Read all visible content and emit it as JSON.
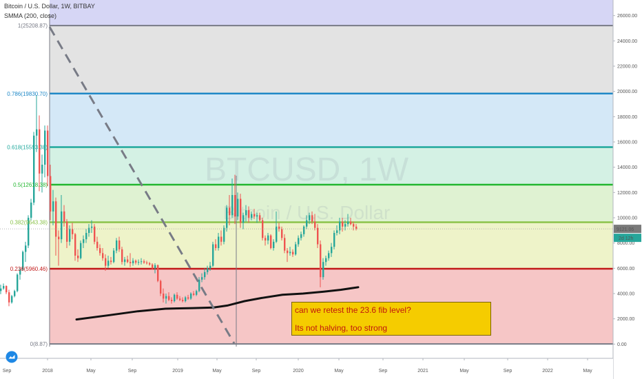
{
  "header": {
    "title_line": "Bitcoin / U.S. Dollar, 1W, BITBAY",
    "indicator_line": "SMMA (200, close)"
  },
  "watermark": {
    "symbol": "BTCUSD, 1W",
    "name": "Bitcoin / U.S. Dollar"
  },
  "chart_data": {
    "type": "candlestick",
    "y_axis": {
      "ticks": [
        "0.00",
        "2000.00",
        "4000.00",
        "6000.00",
        "8000.00",
        "10000.00",
        "12000.00",
        "14000.00",
        "16000.00",
        "18000.00",
        "20000.00",
        "22000.00",
        "24000.00",
        "26000.00"
      ],
      "ylim": [
        -200,
        26800
      ]
    },
    "x_axis": {
      "ticks": [
        "Sep",
        "2018",
        "May",
        "Sep",
        "2019",
        "May",
        "Sep",
        "2020",
        "May",
        "Sep",
        "2021",
        "May",
        "Sep",
        "2022",
        "May"
      ]
    },
    "fib_levels": [
      {
        "label": "0(8.87)",
        "value": 8.87,
        "line": "#787b86",
        "fill": "#f6c6c6"
      },
      {
        "label": "0.236(5960.46)",
        "value": 5960.46,
        "line": "#c21a1a",
        "fill": "#eef3c9"
      },
      {
        "label": "0.382(9643.38)",
        "value": 9643.38,
        "line": "#8bc34a",
        "fill": "#dff2d2"
      },
      {
        "label": "0.5(12618.38)",
        "value": 12618.38,
        "line": "#22b62f",
        "fill": "#d4f1e4"
      },
      {
        "label": "0.618(15593.38)",
        "value": 15593.38,
        "line": "#1fa89c",
        "fill": "#d4e8f7"
      },
      {
        "label": "0.786(19830.70)",
        "value": 19830.7,
        "line": "#1e88c7",
        "fill": "#e3e3e3"
      },
      {
        "label": "1(25208.87)",
        "value": 25208.87,
        "line": "#787b86",
        "fill": "#d6d6f5"
      }
    ],
    "last_price": "9121.06",
    "countdown": "2d 12h",
    "candles": [
      [
        0,
        4200,
        4700,
        3950,
        4400
      ],
      [
        4,
        4400,
        4800,
        4300,
        4600
      ],
      [
        8,
        4600,
        4650,
        3950,
        4100
      ],
      [
        12,
        4100,
        4300,
        3000,
        3300
      ],
      [
        16,
        3300,
        3900,
        3200,
        3800
      ],
      [
        20,
        3800,
        4300,
        3700,
        4200
      ],
      [
        24,
        4200,
        5600,
        4100,
        5500
      ],
      [
        28,
        5500,
        6100,
        5100,
        5900
      ],
      [
        32,
        5900,
        7400,
        5800,
        7300
      ],
      [
        36,
        7300,
        8100,
        6500,
        7800
      ],
      [
        40,
        7800,
        10200,
        7600,
        10000
      ],
      [
        44,
        10000,
        11500,
        9800,
        11200
      ],
      [
        48,
        11200,
        16800,
        11000,
        16500
      ],
      [
        52,
        16500,
        19700,
        15200,
        17000
      ],
      [
        56,
        17000,
        18100,
        12100,
        13500
      ],
      [
        60,
        13500,
        15000,
        12000,
        14200
      ],
      [
        64,
        14200,
        17300,
        13200,
        16900
      ],
      [
        68,
        16900,
        17300,
        12500,
        13300
      ],
      [
        72,
        13300,
        14200,
        9800,
        10500
      ],
      [
        76,
        10500,
        12200,
        9400,
        11300
      ],
      [
        80,
        11300,
        11600,
        7000,
        8500
      ],
      [
        84,
        8500,
        9000,
        6200,
        8300
      ],
      [
        88,
        8300,
        11800,
        8000,
        10500
      ],
      [
        92,
        10500,
        11000,
        9300,
        9700
      ],
      [
        96,
        9700,
        9900,
        7600,
        8100
      ],
      [
        100,
        8100,
        9400,
        7800,
        9100
      ],
      [
        104,
        9100,
        9600,
        8300,
        8700
      ],
      [
        108,
        8700,
        8800,
        6600,
        7000
      ],
      [
        112,
        7000,
        7500,
        6500,
        6800
      ],
      [
        116,
        6800,
        8200,
        6700,
        8000
      ],
      [
        120,
        8000,
        8600,
        7600,
        8300
      ],
      [
        124,
        8300,
        9100,
        8000,
        8800
      ],
      [
        128,
        8800,
        9500,
        8500,
        9200
      ],
      [
        132,
        9200,
        9800,
        8800,
        9300
      ],
      [
        136,
        9300,
        9500,
        7900,
        8100
      ],
      [
        140,
        8100,
        8500,
        7400,
        7600
      ],
      [
        144,
        7600,
        7900,
        7000,
        7200
      ],
      [
        148,
        7200,
        7600,
        6600,
        6800
      ],
      [
        152,
        6800,
        7100,
        5800,
        6200
      ],
      [
        156,
        6200,
        7000,
        6000,
        6600
      ],
      [
        160,
        6600,
        6900,
        6300,
        6500
      ],
      [
        164,
        6500,
        7600,
        6400,
        7400
      ],
      [
        168,
        7400,
        8400,
        7200,
        8200
      ],
      [
        172,
        8200,
        8500,
        7300,
        7500
      ],
      [
        176,
        7500,
        7700,
        6300,
        6500
      ],
      [
        180,
        6500,
        6900,
        6200,
        6700
      ],
      [
        184,
        6700,
        7000,
        6400,
        6500
      ],
      [
        188,
        6500,
        7200,
        6100,
        6400
      ],
      [
        192,
        6400,
        6800,
        6200,
        6600
      ],
      [
        196,
        6600,
        6700,
        6300,
        6450
      ],
      [
        200,
        6450,
        6700,
        6250,
        6500
      ],
      [
        204,
        6500,
        6800,
        6300,
        6550
      ],
      [
        208,
        6550,
        6700,
        6350,
        6450
      ],
      [
        212,
        6450,
        6600,
        6300,
        6400
      ],
      [
        216,
        6400,
        6500,
        6200,
        6300
      ],
      [
        220,
        6300,
        6400,
        5900,
        6000
      ],
      [
        224,
        6000,
        6400,
        5600,
        6250
      ],
      [
        228,
        6250,
        6300,
        4900,
        5000
      ],
      [
        232,
        5000,
        5100,
        3800,
        4000
      ],
      [
        236,
        4000,
        4400,
        3300,
        3600
      ],
      [
        240,
        3600,
        4000,
        3200,
        3800
      ],
      [
        244,
        3800,
        4100,
        3400,
        3500
      ],
      [
        248,
        3500,
        3700,
        3200,
        3400
      ],
      [
        252,
        3400,
        4000,
        3300,
        3900
      ],
      [
        256,
        3900,
        4100,
        3500,
        3600
      ],
      [
        260,
        3600,
        3800,
        3400,
        3500
      ],
      [
        264,
        3500,
        3700,
        3300,
        3400
      ],
      [
        268,
        3400,
        3800,
        3300,
        3700
      ],
      [
        272,
        3700,
        3900,
        3500,
        3600
      ],
      [
        276,
        3600,
        4100,
        3500,
        4000
      ],
      [
        280,
        4000,
        4200,
        3800,
        3900
      ],
      [
        284,
        3900,
        4300,
        3800,
        4200
      ],
      [
        288,
        4200,
        5300,
        4100,
        5100
      ],
      [
        292,
        5100,
        5600,
        4900,
        5300
      ],
      [
        296,
        5300,
        6000,
        5100,
        5700
      ],
      [
        300,
        5700,
        6200,
        5500,
        6000
      ],
      [
        304,
        6000,
        6500,
        5800,
        6200
      ],
      [
        308,
        6200,
        8100,
        6100,
        7900
      ],
      [
        312,
        7900,
        8300,
        7400,
        7600
      ],
      [
        316,
        7600,
        8800,
        7400,
        8500
      ],
      [
        320,
        8500,
        9000,
        7800,
        8100
      ],
      [
        324,
        8100,
        9400,
        7900,
        9200
      ],
      [
        328,
        9200,
        11000,
        8900,
        10800
      ],
      [
        332,
        10800,
        11800,
        9400,
        10200
      ],
      [
        336,
        10200,
        13100,
        10000,
        11800
      ],
      [
        340,
        11800,
        13400,
        9500,
        10100
      ],
      [
        344,
        10100,
        12000,
        9800,
        11500
      ],
      [
        348,
        11500,
        11900,
        9200,
        9600
      ],
      [
        352,
        9600,
        10400,
        9100,
        10200
      ],
      [
        356,
        10200,
        11000,
        9700,
        10600
      ],
      [
        360,
        10600,
        10900,
        9600,
        10000
      ],
      [
        364,
        10000,
        10500,
        9800,
        10300
      ],
      [
        368,
        10300,
        10700,
        9900,
        10100
      ],
      [
        372,
        10100,
        10400,
        9600,
        10200
      ],
      [
        376,
        10200,
        10400,
        9700,
        9800
      ],
      [
        380,
        9800,
        10000,
        8200,
        8400
      ],
      [
        384,
        8400,
        8600,
        7800,
        8200
      ],
      [
        388,
        8200,
        8800,
        7900,
        8600
      ],
      [
        392,
        8600,
        8700,
        7500,
        7600
      ],
      [
        396,
        7600,
        8300,
        7400,
        8100
      ],
      [
        400,
        8100,
        10500,
        8000,
        9300
      ],
      [
        404,
        9300,
        9600,
        8900,
        9100
      ],
      [
        408,
        9100,
        9300,
        8200,
        8400
      ],
      [
        412,
        8400,
        8700,
        7200,
        7400
      ],
      [
        416,
        7400,
        7600,
        6500,
        7200
      ],
      [
        420,
        7200,
        7700,
        7000,
        7300
      ],
      [
        424,
        7300,
        7500,
        6900,
        7100
      ],
      [
        428,
        7100,
        8100,
        7000,
        7900
      ],
      [
        432,
        7900,
        8600,
        7700,
        8400
      ],
      [
        436,
        8400,
        8900,
        8200,
        8700
      ],
      [
        440,
        8700,
        9400,
        8500,
        9300
      ],
      [
        444,
        9300,
        10200,
        9100,
        9800
      ],
      [
        448,
        9800,
        10400,
        9500,
        10200
      ],
      [
        452,
        10200,
        10500,
        9500,
        9700
      ],
      [
        456,
        9700,
        10300,
        9000,
        9200
      ],
      [
        460,
        9200,
        9500,
        7600,
        7900
      ],
      [
        464,
        7900,
        8200,
        4500,
        5300
      ],
      [
        468,
        5300,
        6800,
        5100,
        6500
      ],
      [
        472,
        6500,
        7000,
        6200,
        6800
      ],
      [
        476,
        6800,
        7400,
        6600,
        7200
      ],
      [
        480,
        7200,
        8000,
        6900,
        7700
      ],
      [
        484,
        7700,
        9000,
        7500,
        8800
      ],
      [
        488,
        8800,
        9400,
        8600,
        9000
      ],
      [
        492,
        9000,
        10000,
        8700,
        9700
      ],
      [
        496,
        9700,
        10000,
        8900,
        9300
      ],
      [
        500,
        9300,
        9800,
        9000,
        9500
      ],
      [
        504,
        9500,
        10300,
        9300,
        9700
      ],
      [
        508,
        9700,
        10000,
        9400,
        9500
      ],
      [
        512,
        9500,
        9700,
        9000,
        9300
      ],
      [
        516,
        9300,
        9500,
        9000,
        9121.06
      ]
    ],
    "smma": [
      [
        111,
        1950
      ],
      [
        160,
        2300
      ],
      [
        200,
        2600
      ],
      [
        240,
        2800
      ],
      [
        280,
        2850
      ],
      [
        310,
        2900
      ],
      [
        330,
        3050
      ],
      [
        355,
        3400
      ],
      [
        380,
        3650
      ],
      [
        410,
        3900
      ],
      [
        440,
        4000
      ],
      [
        470,
        4150
      ],
      [
        495,
        4300
      ],
      [
        520,
        4500
      ]
    ],
    "trend_line": {
      "from": [
        72,
        25100
      ],
      "to": [
        340,
        50
      ]
    },
    "note_lines": [
      "can we retest the 23.6 fib level?",
      "Its not halving, too strong"
    ]
  },
  "colors": {
    "bull": "#26a69a",
    "bear": "#ef5350",
    "smma": "#111111",
    "trend": "#787b86",
    "price_tag": "#7a7a7a",
    "countdown_tag": "#26a69a"
  },
  "logo_icon": "tradingview-cloud-icon"
}
